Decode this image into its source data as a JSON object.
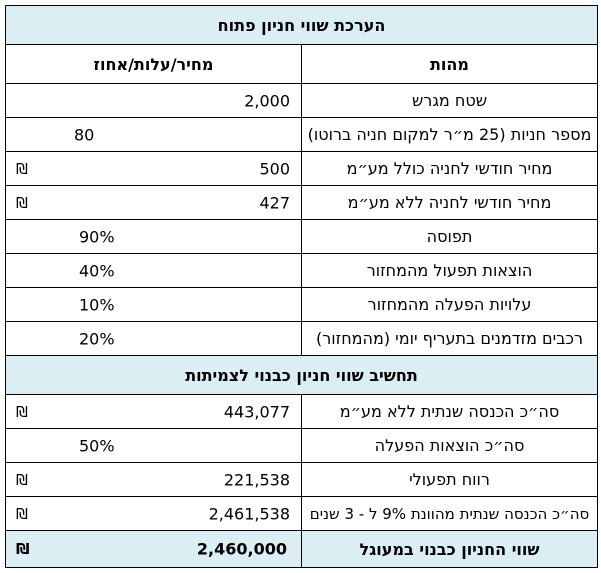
{
  "title": "הערכת שווי חניון פתוח",
  "headers": {
    "label": "מהות",
    "value": "מחיר/עלות/אחוז"
  },
  "currency_symbol": "₪",
  "rows": [
    {
      "label": "שטח מגרש",
      "value": "2,000"
    },
    {
      "label": "מספר חניות (25 מ״ר למקום חניה ברוטו)",
      "value": "80"
    },
    {
      "label": "מחיר חודשי לחניה כולל מע״מ",
      "value": "500"
    },
    {
      "label": "מחיר חודשי לחניה ללא מע״מ",
      "value": "427"
    },
    {
      "label": "תפוסה",
      "value": "90%"
    },
    {
      "label": "הוצאות תפעול מהמחזור",
      "value": "40%"
    },
    {
      "label": "עלויות הפעלה מהמחזור",
      "value": "10%"
    },
    {
      "label": "רכבים מזדמנים בתעריף יומי (מהמחזור)",
      "value": "20%"
    }
  ],
  "section2_title": "תחשיב שווי חניון כבנוי לצמיתות",
  "rows2": [
    {
      "label": "סה״כ הכנסה שנתית ללא מע״מ",
      "value": "443,077"
    },
    {
      "label": "סה״כ הוצאות הפעלה",
      "value": "50%"
    },
    {
      "label": "רווח תפעולי",
      "value": "221,538"
    },
    {
      "label": "סה״כ הכנסה שנתית מהוונת 9% ל - 3 שנים",
      "value": "2,461,538"
    }
  ],
  "total": {
    "label": "שווי החניון כבנוי במעוגל",
    "value": "2,460,000"
  },
  "colors": {
    "section_bg": "#daeef3"
  }
}
